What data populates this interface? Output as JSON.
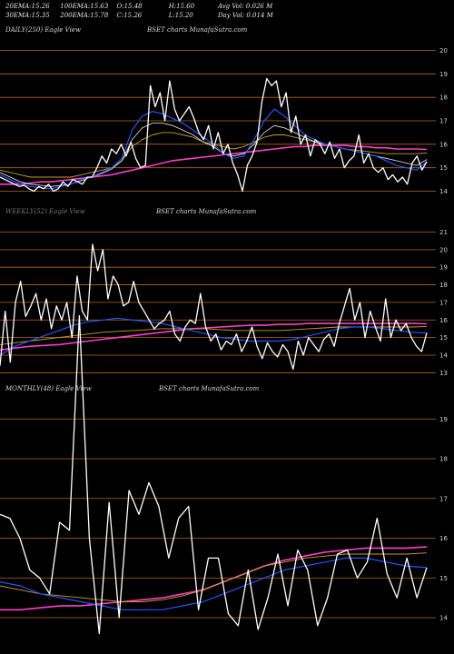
{
  "header": {
    "row1": [
      {
        "label": "20EMA:",
        "value": "15.26"
      },
      {
        "label": "100EMA:",
        "value": "15.63"
      },
      {
        "label": "O:",
        "value": "15.48"
      },
      {
        "label": "H:",
        "value": "15.60"
      },
      {
        "label": "Avg Vol:",
        "value": "0.026  M"
      }
    ],
    "row2": [
      {
        "label": "30EMA:",
        "value": "15.35"
      },
      {
        "label": "200EMA:",
        "value": "15.78"
      },
      {
        "label": "C:",
        "value": "15.26"
      },
      {
        "label": "L:",
        "value": "15.20"
      },
      {
        "label": "Day Vol:",
        "value": "0.014  M"
      }
    ]
  },
  "panels": {
    "daily": {
      "left": "DAILY(250) Eagle  View",
      "right": "BSET charts MunafaSutra.com"
    },
    "weekly": {
      "left": "WEEKLY(52) Eagle  View",
      "right": "BSET charts MunafaSutra.com"
    },
    "monthly": {
      "left": "MONTHLY(48) Eagle  View",
      "right": "BSET charts MunafaSutra.com"
    }
  },
  "colors": {
    "background": "#000000",
    "grid": "#b5651d",
    "price": "#ffffff",
    "ema_fast": "#2255ff",
    "ema_mid": "#e8e8e8",
    "ema_slow": "#c8a020",
    "ema_200": "#ff3cc8"
  },
  "chart_data": [
    {
      "type": "line",
      "name": "DAILY(250)",
      "yticks": [
        20,
        19,
        18,
        17,
        16,
        15,
        14
      ],
      "ylim": [
        13.4,
        20.6
      ],
      "series": [
        {
          "name": "Price",
          "values": [
            14.6,
            14.5,
            14.4,
            14.3,
            14.2,
            14.25,
            14.1,
            14.0,
            14.2,
            14.1,
            14.3,
            14.0,
            14.1,
            14.4,
            14.2,
            14.5,
            14.4,
            14.3,
            14.6,
            14.6,
            15.0,
            15.5,
            15.2,
            15.8,
            15.6,
            16.0,
            15.5,
            16.1,
            15.4,
            15.0,
            15.1,
            18.5,
            17.6,
            18.2,
            17.0,
            18.7,
            17.5,
            17.0,
            17.3,
            17.6,
            17.1,
            16.5,
            16.2,
            16.8,
            15.8,
            16.5,
            15.6,
            16.0,
            15.2,
            14.7,
            14.0,
            15.1,
            15.5,
            16.1,
            17.8,
            18.8,
            18.5,
            18.7,
            17.6,
            18.2,
            16.5,
            17.2,
            16.0,
            16.4,
            15.5,
            16.2,
            16.0,
            15.6,
            16.1,
            15.4,
            15.8,
            15.0,
            15.3,
            15.5,
            16.4,
            15.2,
            15.6,
            15.0,
            14.8,
            15.0,
            14.5,
            14.7,
            14.4,
            14.6,
            14.3,
            15.2,
            15.5,
            14.9,
            15.26
          ]
        },
        {
          "name": "EMA20",
          "values": [
            14.7,
            14.5,
            14.3,
            14.2,
            14.15,
            14.1,
            14.2,
            14.3,
            14.5,
            14.6,
            14.8,
            15.0,
            15.4,
            16.6,
            17.2,
            17.4,
            17.3,
            17.1,
            16.9,
            16.6,
            16.3,
            16.0,
            15.6,
            15.4,
            15.5,
            16.2,
            17.0,
            17.5,
            17.2,
            16.8,
            16.4,
            16.2,
            16.0,
            15.9,
            15.8,
            15.7,
            15.6,
            15.5,
            15.3,
            15.1,
            15.0,
            14.9,
            15.26
          ]
        },
        {
          "name": "EMA30",
          "values": [
            14.8,
            14.6,
            14.4,
            14.3,
            14.25,
            14.2,
            14.25,
            14.3,
            14.45,
            14.6,
            14.75,
            14.95,
            15.3,
            16.2,
            16.7,
            16.9,
            16.9,
            16.8,
            16.6,
            16.4,
            16.1,
            15.9,
            15.6,
            15.5,
            15.6,
            16.0,
            16.5,
            16.8,
            16.7,
            16.5,
            16.3,
            16.1,
            16.0,
            15.9,
            15.8,
            15.7,
            15.6,
            15.5,
            15.4,
            15.3,
            15.2,
            15.1,
            15.35
          ]
        },
        {
          "name": "EMA100",
          "values": [
            14.9,
            14.8,
            14.7,
            14.6,
            14.6,
            14.6,
            14.6,
            14.6,
            14.7,
            14.8,
            14.9,
            15.0,
            15.3,
            15.9,
            16.2,
            16.4,
            16.5,
            16.5,
            16.4,
            16.3,
            16.1,
            16.0,
            15.9,
            15.8,
            15.9,
            16.1,
            16.3,
            16.4,
            16.4,
            16.3,
            16.2,
            16.1,
            16.0,
            15.9,
            15.8,
            15.75,
            15.7,
            15.65,
            15.6,
            15.6,
            15.6,
            15.6,
            15.63
          ]
        },
        {
          "name": "EMA200",
          "values": [
            14.3,
            14.3,
            14.3,
            14.35,
            14.4,
            14.4,
            14.45,
            14.5,
            14.55,
            14.6,
            14.65,
            14.7,
            14.8,
            14.9,
            15.0,
            15.1,
            15.2,
            15.3,
            15.35,
            15.4,
            15.45,
            15.5,
            15.55,
            15.6,
            15.65,
            15.7,
            15.75,
            15.8,
            15.85,
            15.9,
            15.9,
            15.95,
            15.95,
            15.95,
            15.95,
            15.9,
            15.9,
            15.85,
            15.85,
            15.8,
            15.8,
            15.8,
            15.78
          ]
        }
      ]
    },
    {
      "type": "line",
      "name": "WEEKLY(52)",
      "yticks": [
        21,
        20,
        19,
        18,
        17,
        16,
        15,
        14,
        13
      ],
      "ylim": [
        12.5,
        21.8
      ],
      "series": [
        {
          "name": "Price",
          "values": [
            13.4,
            16.5,
            13.6,
            17.0,
            18.2,
            16.2,
            16.8,
            17.5,
            16.0,
            17.2,
            15.5,
            16.8,
            16.0,
            17.0,
            15.0,
            18.5,
            16.5,
            16.0,
            20.3,
            18.8,
            20.0,
            17.2,
            18.5,
            18.0,
            16.8,
            17.0,
            18.2,
            17.0,
            16.5,
            16.0,
            15.5,
            15.8,
            16.0,
            16.5,
            15.2,
            14.8,
            15.6,
            16.0,
            15.8,
            17.5,
            15.6,
            14.8,
            15.2,
            14.3,
            14.8,
            14.6,
            15.2,
            14.2,
            14.8,
            15.6,
            14.5,
            13.8,
            14.7,
            14.2,
            13.9,
            14.6,
            14.2,
            13.2,
            14.8,
            14.0,
            15.0,
            14.6,
            14.2,
            14.9,
            15.2,
            14.5,
            15.8,
            16.8,
            17.8,
            16.0,
            17.0,
            15.0,
            16.5,
            15.6,
            14.8,
            17.2,
            15.0,
            16.0,
            15.4,
            15.8,
            15.0,
            14.5,
            14.2,
            15.26
          ]
        },
        {
          "name": "EMA20",
          "values": [
            14.0,
            14.5,
            14.8,
            15.1,
            15.4,
            15.7,
            15.9,
            16.0,
            16.1,
            16.0,
            15.9,
            15.8,
            15.6,
            15.4,
            15.2,
            15.0,
            14.9,
            14.8,
            14.8,
            14.8,
            14.9,
            15.1,
            15.3,
            15.5,
            15.6,
            15.6,
            15.5,
            15.4,
            15.3,
            15.26
          ]
        },
        {
          "name": "EMA100",
          "values": [
            14.6,
            14.7,
            14.8,
            14.9,
            15.0,
            15.1,
            15.2,
            15.3,
            15.35,
            15.4,
            15.45,
            15.5,
            15.5,
            15.5,
            15.5,
            15.45,
            15.4,
            15.4,
            15.4,
            15.4,
            15.45,
            15.5,
            15.55,
            15.6,
            15.6,
            15.6,
            15.6,
            15.6,
            15.6,
            15.63
          ]
        },
        {
          "name": "EMA200",
          "values": [
            14.3,
            14.4,
            14.5,
            14.55,
            14.6,
            14.7,
            14.8,
            14.9,
            15.0,
            15.1,
            15.2,
            15.3,
            15.4,
            15.5,
            15.55,
            15.6,
            15.65,
            15.7,
            15.7,
            15.75,
            15.75,
            15.8,
            15.8,
            15.8,
            15.8,
            15.8,
            15.8,
            15.8,
            15.8,
            15.78
          ]
        }
      ]
    },
    {
      "type": "line",
      "name": "MONTHLY(48)",
      "yticks": [
        19,
        18,
        17,
        16,
        15,
        14
      ],
      "ylim": [
        13.2,
        19.6
      ],
      "series": [
        {
          "name": "Price",
          "values": [
            16.6,
            16.5,
            16.0,
            15.2,
            15.0,
            14.6,
            16.4,
            16.2,
            21.6,
            16.0,
            13.6,
            16.9,
            14.0,
            17.2,
            16.6,
            17.4,
            16.8,
            15.5,
            16.5,
            16.8,
            14.2,
            15.5,
            15.5,
            14.1,
            13.8,
            15.2,
            13.7,
            14.5,
            15.6,
            14.3,
            15.7,
            15.2,
            13.8,
            14.5,
            15.6,
            15.7,
            15.0,
            15.4,
            16.5,
            15.1,
            14.5,
            15.5,
            14.5,
            15.26
          ]
        },
        {
          "name": "EMA20",
          "values": [
            14.9,
            14.8,
            14.6,
            14.5,
            14.4,
            14.3,
            14.2,
            14.2,
            14.2,
            14.3,
            14.4,
            14.6,
            14.8,
            15.0,
            15.2,
            15.3,
            15.4,
            15.5,
            15.5,
            15.4,
            15.3,
            15.26
          ]
        },
        {
          "name": "EMA100",
          "values": [
            14.8,
            14.7,
            14.6,
            14.55,
            14.5,
            14.45,
            14.4,
            14.4,
            14.45,
            14.55,
            14.7,
            14.9,
            15.1,
            15.3,
            15.4,
            15.5,
            15.55,
            15.6,
            15.6,
            15.6,
            15.6,
            15.63
          ]
        },
        {
          "name": "EMA200",
          "values": [
            14.2,
            14.2,
            14.25,
            14.3,
            14.3,
            14.35,
            14.4,
            14.45,
            14.5,
            14.6,
            14.7,
            14.9,
            15.1,
            15.3,
            15.45,
            15.55,
            15.65,
            15.7,
            15.75,
            15.75,
            15.75,
            15.78
          ]
        }
      ]
    }
  ]
}
